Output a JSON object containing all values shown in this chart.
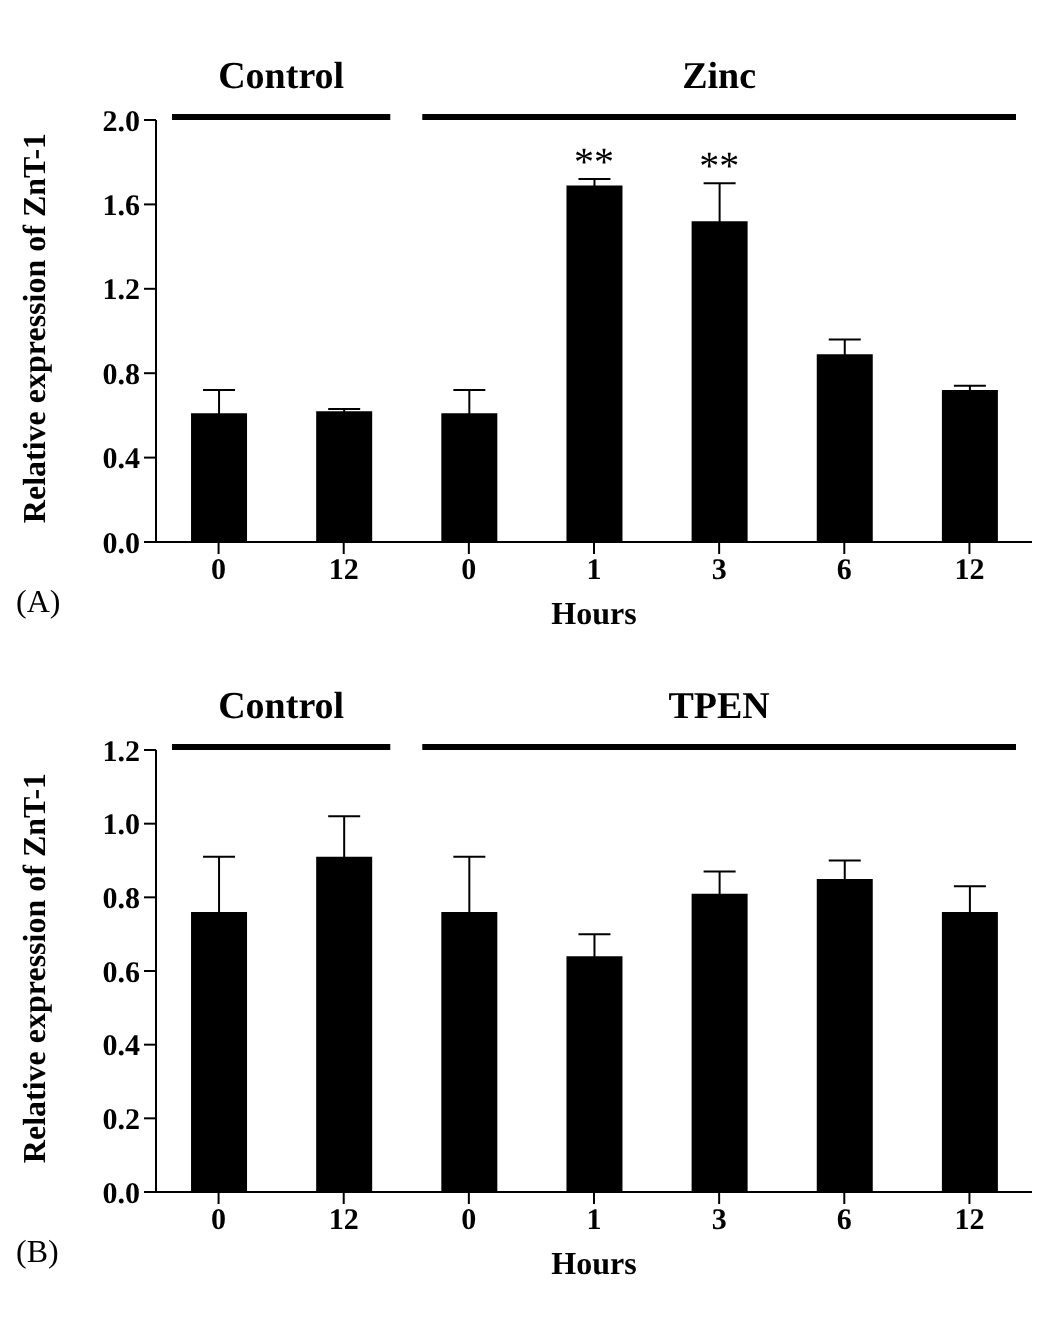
{
  "chart_data": [
    {
      "type": "bar",
      "xlabel": "Hours",
      "ylabel": "Relative expression of ZnT-1",
      "categories": [
        "0",
        "12",
        "0",
        "1",
        "3",
        "6",
        "12"
      ],
      "series": [
        {
          "color": "#000000",
          "values": [
            0.61,
            0.62,
            0.61,
            1.69,
            1.52,
            0.89,
            0.72
          ],
          "errors": [
            0.11,
            0.01,
            0.11,
            0.03,
            0.18,
            0.07,
            0.02
          ]
        }
      ],
      "ylim": [
        0,
        2.0
      ],
      "yticks": [
        {
          "value": 0,
          "label": "0.0"
        },
        0.4,
        0.8,
        1.2,
        1.6,
        {
          "value": 2,
          "label": "2.0"
        }
      ],
      "grid": false,
      "legend": false,
      "annotations": [
        "Control",
        "Zinc",
        {
          "text": "**",
          "x": "1",
          "y": 1.72
        },
        {
          "text": "**",
          "x": "3",
          "y": 1.7
        },
        "(A)"
      ]
    },
    {
      "type": "bar",
      "xlabel": "Hours",
      "ylabel": "Relative expression of ZnT-1",
      "categories": [
        "0",
        "12",
        "0",
        "1",
        "3",
        "6",
        "12"
      ],
      "series": [
        {
          "color": "#000000",
          "values": [
            0.76,
            0.91,
            0.76,
            0.64,
            0.81,
            0.85,
            0.76
          ],
          "errors": [
            0.15,
            0.11,
            0.15,
            0.06,
            0.06,
            0.05,
            0.07
          ]
        }
      ],
      "ylim": [
        0,
        1.2
      ],
      "yticks": [
        {
          "value": 0,
          "label": "0.0"
        },
        0.2,
        0.4,
        0.6,
        0.8,
        {
          "value": 1,
          "label": "1.0"
        },
        1.2
      ],
      "grid": false,
      "legend": false,
      "annotations": [
        "Control",
        "TPEN",
        "(B)"
      ]
    }
  ]
}
